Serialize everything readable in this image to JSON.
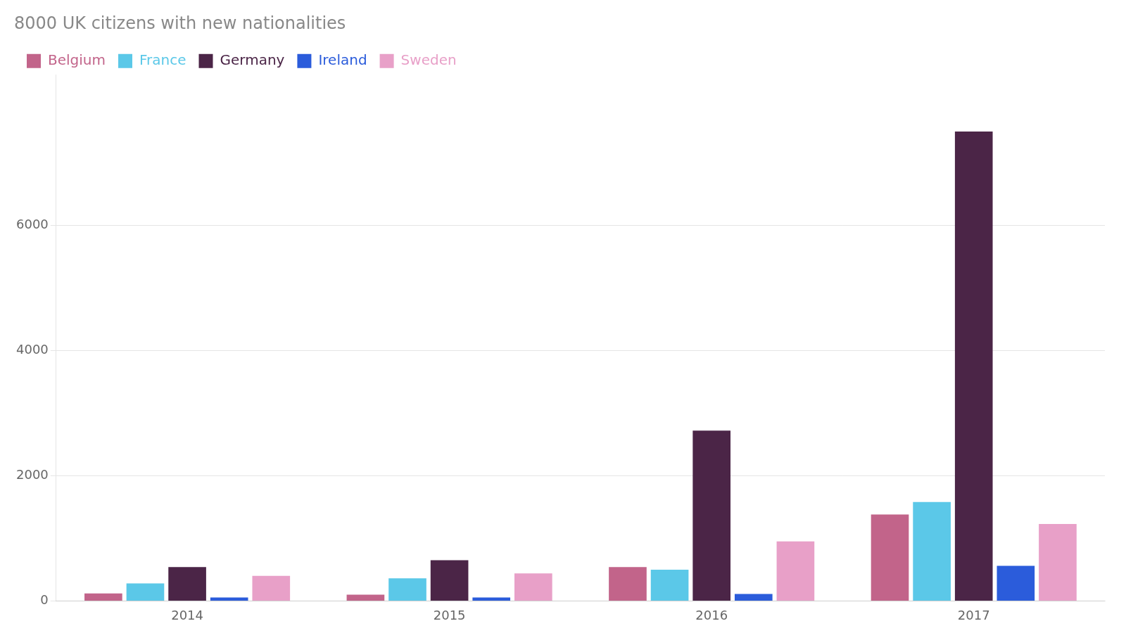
{
  "chart_data": {
    "type": "bar",
    "title": "8000 UK citizens with new nationalities",
    "categories": [
      "2014",
      "2015",
      "2016",
      "2017"
    ],
    "series": [
      {
        "name": "Belgium",
        "color": "#c2648a",
        "values": [
          120,
          100,
          540,
          1380
        ]
      },
      {
        "name": "France",
        "color": "#5bc8e8",
        "values": [
          280,
          360,
          500,
          1580
        ]
      },
      {
        "name": "Germany",
        "color": "#4b2547",
        "values": [
          540,
          650,
          2720,
          7500
        ]
      },
      {
        "name": "Ireland",
        "color": "#2b5cdb",
        "values": [
          55,
          55,
          110,
          560
        ]
      },
      {
        "name": "Sweden",
        "color": "#e8a0c8",
        "values": [
          400,
          440,
          950,
          1230
        ]
      }
    ],
    "ylim": [
      0,
      8400
    ],
    "yticks": [
      0,
      2000,
      4000,
      6000
    ],
    "grid": true,
    "legend": "top"
  }
}
